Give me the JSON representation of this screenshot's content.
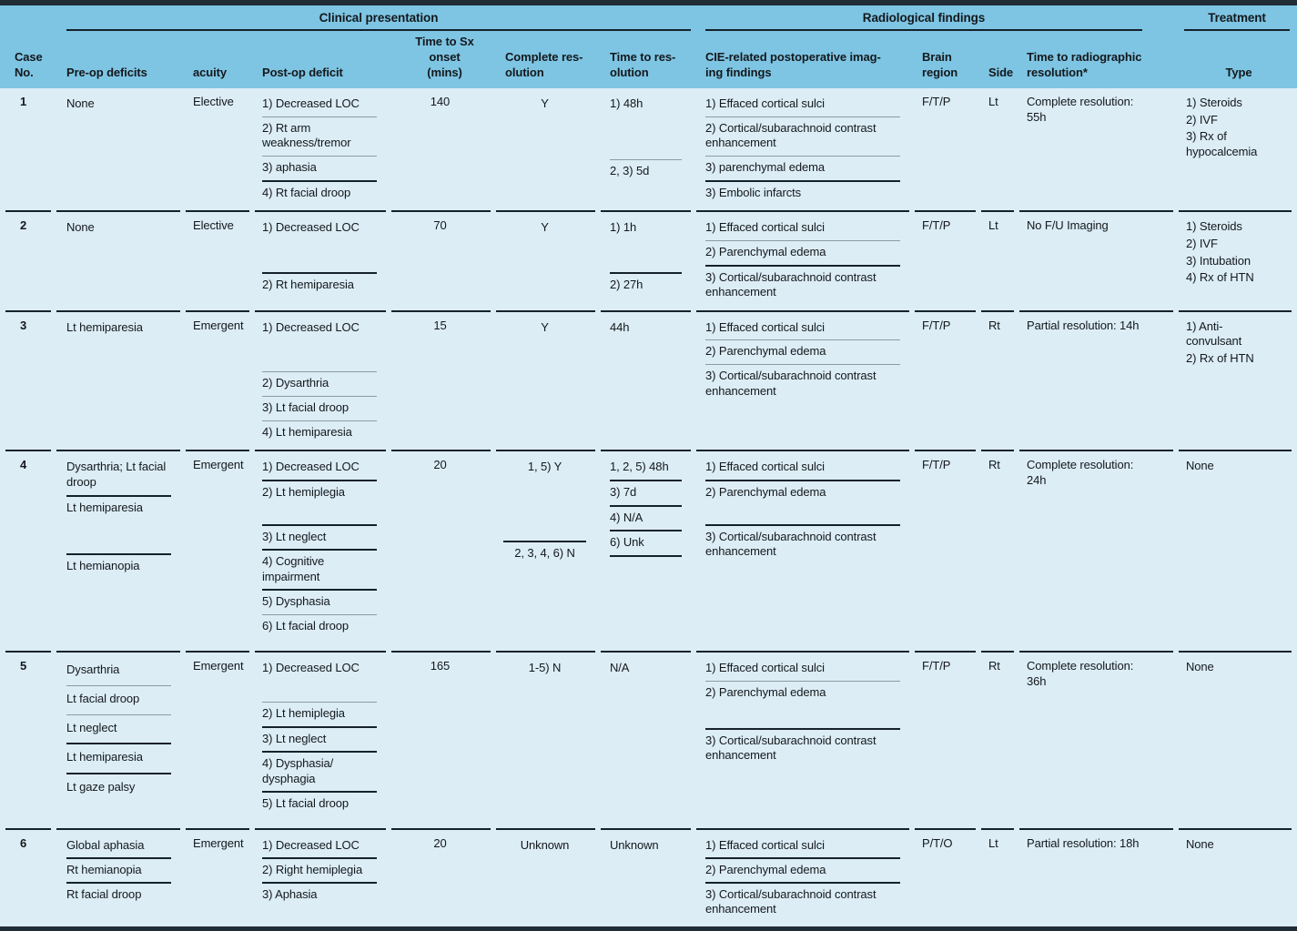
{
  "colors": {
    "header_bg": "#7ec5e3",
    "body_bg": "#dcedf6",
    "bar": "#222c36",
    "rule_dark": "#15212b",
    "rule_thin": "#8f9ba3",
    "text": "#14181c"
  },
  "table": {
    "groups": [
      {
        "label": "Clinical presentation"
      },
      {
        "label": "Radiological findings"
      },
      {
        "label": "Treatment"
      }
    ],
    "columns": [
      {
        "key": "case_no",
        "label": "Case\nNo."
      },
      {
        "key": "pre_op",
        "label": "Pre-op deficits"
      },
      {
        "key": "acuity",
        "label": "acuity"
      },
      {
        "key": "post_op",
        "label": "Post-op deficit"
      },
      {
        "key": "sx_onset",
        "label": "Time to Sx onset\n(mins)"
      },
      {
        "key": "complete_res",
        "label": "Complete res-\nolution"
      },
      {
        "key": "time_to_res",
        "label": "Time to res-\nolution"
      },
      {
        "key": "imaging",
        "label": "CIE-related postoperative imag-\ning findings"
      },
      {
        "key": "brain_region",
        "label": "Brain\nregion"
      },
      {
        "key": "side",
        "label": "Side"
      },
      {
        "key": "radiographic",
        "label": "Time to radiographic\nresolution*"
      },
      {
        "key": "treatment",
        "label": "Type"
      }
    ],
    "rows": [
      {
        "case_no": "1",
        "pre_op": {
          "items": [
            {
              "text": "None"
            }
          ]
        },
        "acuity": "Elective",
        "post_op": {
          "items": [
            {
              "text": "1) Decreased LOC",
              "sep": "thin"
            },
            {
              "text": "2) Rt arm weakness/tremor",
              "sep": "thin"
            },
            {
              "text": "3) aphasia",
              "sep": "thick"
            },
            {
              "text": "4) Rt facial droop"
            }
          ]
        },
        "sx_onset": "140",
        "complete_res": {
          "items": [
            {
              "text": "Y"
            }
          ]
        },
        "time_to_res": {
          "items": [
            {
              "text": "1) 48h",
              "sep": "thin"
            },
            {
              "text": "2, 3) 5d"
            }
          ]
        },
        "imaging": {
          "items": [
            {
              "text": "1) Effaced cortical sulci",
              "sep": "thin"
            },
            {
              "text": "2) Cortical/subarachnoid contrast enhancement",
              "sep": "thin"
            },
            {
              "text": "3) parenchymal edema",
              "sep": "thick"
            },
            {
              "text": "3) Embolic infarcts"
            }
          ]
        },
        "brain_region": "F/T/P",
        "side": "Lt",
        "radiographic": "Complete resolution:\n55h",
        "treatment": {
          "lines": [
            "1) Steroids",
            "2) IVF",
            "3) Rx of\nhypocalcemia"
          ]
        }
      },
      {
        "case_no": "2",
        "pre_op": {
          "items": [
            {
              "text": "None"
            }
          ]
        },
        "acuity": "Elective",
        "post_op": {
          "items": [
            {
              "text": "1) Decreased LOC",
              "sep": "thick"
            },
            {
              "text": "2) Rt hemiparesia"
            }
          ]
        },
        "sx_onset": "70",
        "complete_res": {
          "items": [
            {
              "text": "Y"
            }
          ]
        },
        "time_to_res": {
          "items": [
            {
              "text": "1) 1h",
              "sep": "thick"
            },
            {
              "text": "2) 27h"
            }
          ]
        },
        "imaging": {
          "items": [
            {
              "text": "1) Effaced cortical sulci",
              "sep": "thin"
            },
            {
              "text": "2) Parenchymal edema",
              "sep": "thick"
            },
            {
              "text": "3) Cortical/subarachnoid contrast enhancement"
            }
          ]
        },
        "brain_region": "F/T/P",
        "side": "Lt",
        "radiographic": "No F/U Imaging",
        "treatment": {
          "lines": [
            "1) Steroids",
            "2) IVF",
            "3) Intubation",
            "4) Rx of HTN"
          ]
        }
      },
      {
        "case_no": "3",
        "pre_op": {
          "items": [
            {
              "text": "Lt hemiparesia"
            }
          ]
        },
        "acuity": "Emergent",
        "post_op": {
          "items": [
            {
              "text": "1) Decreased LOC",
              "sep": "thin"
            },
            {
              "text": "2) Dysarthria",
              "sep": "thin"
            },
            {
              "text": "3) Lt facial droop",
              "sep": "thin"
            },
            {
              "text": "4) Lt hemiparesia"
            }
          ]
        },
        "sx_onset": "15",
        "complete_res": {
          "items": [
            {
              "text": "Y"
            }
          ]
        },
        "time_to_res": {
          "items": [
            {
              "text": "44h"
            }
          ]
        },
        "imaging": {
          "items": [
            {
              "text": "1) Effaced cortical sulci",
              "sep": "thin"
            },
            {
              "text": "2) Parenchymal edema",
              "sep": "thin"
            },
            {
              "text": "3) Cortical/subarachnoid contrast enhancement"
            }
          ]
        },
        "brain_region": "F/T/P",
        "side": "Rt",
        "radiographic": "Partial resolution: 14h",
        "treatment": {
          "lines": [
            "1) Anti-\nconvulsant",
            "2) Rx of HTN"
          ]
        }
      },
      {
        "case_no": "4",
        "pre_op": {
          "items": [
            {
              "text": "Dysarthria; Lt facial droop",
              "sep": "thick"
            },
            {
              "text": "Lt hemiparesia",
              "sep": "thick"
            },
            {
              "text": "Lt hemianopia"
            }
          ]
        },
        "acuity": "Emergent",
        "post_op": {
          "items": [
            {
              "text": "1) Decreased LOC",
              "sep": "thick"
            },
            {
              "text": "2) Lt hemiplegia",
              "sep": "thick"
            },
            {
              "text": "3) Lt neglect",
              "sep": "thick"
            },
            {
              "text": "4) Cognitive impairment",
              "sep": "thick"
            },
            {
              "text": "5) Dysphasia",
              "sep": "thin"
            },
            {
              "text": "6) Lt facial droop"
            }
          ]
        },
        "sx_onset": "20",
        "complete_res": {
          "items": [
            {
              "text": "1, 5) Y",
              "sep": "thick"
            },
            {
              "text": "2, 3, 4, 6) N"
            }
          ]
        },
        "time_to_res": {
          "items": [
            {
              "text": "1, 2, 5) 48h",
              "sep": "thick"
            },
            {
              "text": "3) 7d",
              "sep": "thick"
            },
            {
              "text": "4) N/A",
              "sep": "thick"
            },
            {
              "text": "6) Unk",
              "sep": "thick"
            }
          ]
        },
        "imaging": {
          "items": [
            {
              "text": "1) Effaced cortical sulci",
              "sep": "thick"
            },
            {
              "text": "2) Parenchymal edema",
              "sep": "thick"
            },
            {
              "text": "3) Cortical/subarachnoid contrast enhancement"
            }
          ]
        },
        "brain_region": "F/T/P",
        "side": "Rt",
        "radiographic": "Complete resolution:\n24h",
        "treatment": {
          "lines": [
            "None"
          ]
        }
      },
      {
        "case_no": "5",
        "pre_op": {
          "items": [
            {
              "text": "Dysarthria",
              "sep": "thin"
            },
            {
              "text": "Lt facial droop",
              "sep": "thin"
            },
            {
              "text": "Lt neglect",
              "sep": "thick"
            },
            {
              "text": "Lt hemiparesia",
              "sep": "thick"
            },
            {
              "text": "Lt gaze palsy"
            }
          ]
        },
        "acuity": "Emergent",
        "post_op": {
          "items": [
            {
              "text": "1) Decreased LOC",
              "sep": "thin"
            },
            {
              "text": "2) Lt hemiplegia",
              "sep": "thick"
            },
            {
              "text": "3) Lt neglect",
              "sep": "thick"
            },
            {
              "text": "4) Dysphasia/\ndysphagia",
              "sep": "thick"
            },
            {
              "text": "5) Lt facial droop"
            }
          ]
        },
        "sx_onset": "165",
        "complete_res": {
          "items": [
            {
              "text": "1-5) N"
            }
          ]
        },
        "time_to_res": {
          "items": [
            {
              "text": "N/A"
            }
          ]
        },
        "imaging": {
          "items": [
            {
              "text": "1) Effaced cortical sulci",
              "sep": "thin"
            },
            {
              "text": "2) Parenchymal edema",
              "sep": "thick"
            },
            {
              "text": "3) Cortical/subarachnoid contrast enhancement"
            }
          ]
        },
        "brain_region": "F/T/P",
        "side": "Rt",
        "radiographic": "Complete resolution:\n36h",
        "treatment": {
          "lines": [
            "None"
          ]
        }
      },
      {
        "case_no": "6",
        "pre_op": {
          "items": [
            {
              "text": "Global aphasia",
              "sep": "thick"
            },
            {
              "text": "Rt hemianopia",
              "sep": "thick"
            },
            {
              "text": "Rt facial droop"
            }
          ]
        },
        "acuity": "Emergent",
        "post_op": {
          "items": [
            {
              "text": "1) Decreased LOC",
              "sep": "thick"
            },
            {
              "text": "2) Right hemiplegia",
              "sep": "thick"
            },
            {
              "text": "3) Aphasia"
            }
          ]
        },
        "sx_onset": "20",
        "complete_res": {
          "items": [
            {
              "text": "Unknown"
            }
          ]
        },
        "time_to_res": {
          "items": [
            {
              "text": "Unknown"
            }
          ]
        },
        "imaging": {
          "items": [
            {
              "text": "1) Effaced cortical sulci",
              "sep": "thick"
            },
            {
              "text": "2) Parenchymal edema",
              "sep": "thick"
            },
            {
              "text": "3) Cortical/subarachnoid contrast enhancement"
            }
          ]
        },
        "brain_region": "P/T/O",
        "side": "Lt",
        "radiographic": "Partial resolution: 18h",
        "treatment": {
          "lines": [
            "None"
          ]
        }
      }
    ]
  }
}
